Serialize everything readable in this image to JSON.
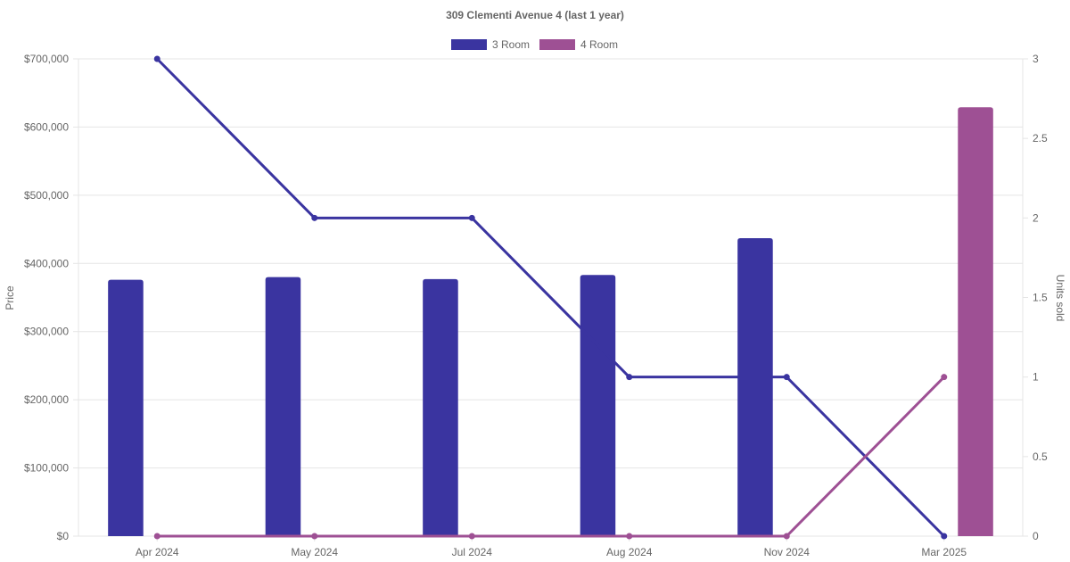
{
  "chart_data": {
    "type": "bar",
    "title": "309 Clementi Avenue 4 (last 1 year)",
    "categories": [
      "Apr 2024",
      "May 2024",
      "Jul 2024",
      "Aug 2024",
      "Nov 2024",
      "Mar 2025"
    ],
    "y_left": {
      "label": "Price",
      "ylim": [
        0,
        700000
      ],
      "ticks": [
        0,
        100000,
        200000,
        300000,
        400000,
        500000,
        600000,
        700000
      ],
      "tick_labels": [
        "$0",
        "$100,000",
        "$200,000",
        "$300,000",
        "$400,000",
        "$500,000",
        "$600,000",
        "$700,000"
      ]
    },
    "y_right": {
      "label": "Units sold",
      "ylim": [
        0,
        3
      ],
      "ticks": [
        0,
        0.5,
        1,
        1.5,
        2,
        2.5,
        3
      ],
      "tick_labels": [
        "0",
        "0.5",
        "1",
        "1.5",
        "2",
        "2.5",
        "3"
      ]
    },
    "legend": {
      "position": "top-center",
      "entries": [
        {
          "name": "3 Room",
          "color": "#3a34a0"
        },
        {
          "name": "4 Room",
          "color": "#9e5094"
        }
      ]
    },
    "grid": true,
    "series": [
      {
        "name": "3 Room",
        "type": "bar",
        "axis": "left",
        "color": "#3a34a0",
        "values": [
          376000,
          380000,
          377000,
          383000,
          437000,
          null
        ]
      },
      {
        "name": "4 Room",
        "type": "bar",
        "axis": "left",
        "color": "#9e5094",
        "values": [
          null,
          null,
          null,
          null,
          null,
          629000
        ]
      },
      {
        "name": "3 Room",
        "type": "line",
        "axis": "right",
        "color": "#3a34a0",
        "values": [
          3,
          2,
          2,
          1,
          1,
          0
        ]
      },
      {
        "name": "4 Room",
        "type": "line",
        "axis": "right",
        "color": "#9e5094",
        "values": [
          0,
          0,
          0,
          0,
          0,
          1
        ]
      }
    ]
  }
}
